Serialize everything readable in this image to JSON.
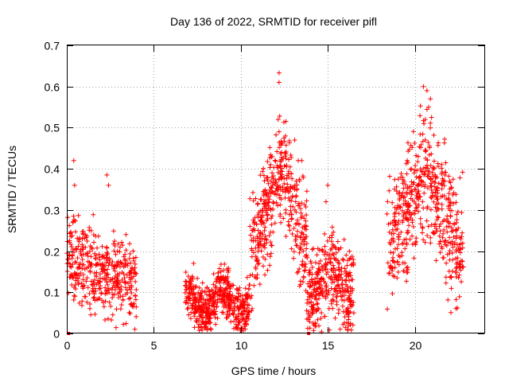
{
  "chart_data": {
    "type": "scatter",
    "title": "Day 136 of 2022, SRMTID for receiver pifl",
    "xlabel": "GPS time / hours",
    "ylabel": "SRMTID / TECUs",
    "xlim": [
      0,
      24
    ],
    "ylim": [
      0,
      0.7
    ],
    "xticks": [
      0,
      5,
      10,
      15,
      20
    ],
    "xtick_labels": [
      "0",
      "5",
      "10",
      "15",
      "20"
    ],
    "yticks": [
      0,
      0.1,
      0.2,
      0.3,
      0.4,
      0.5,
      0.6,
      0.7
    ],
    "ytick_labels": [
      "0",
      "0.1",
      "0.2",
      "0.3",
      "0.4",
      "0.5",
      "0.6",
      "0.7"
    ],
    "grid": true,
    "marker": "+",
    "color": "#ff0000",
    "gap_markers": [
      {
        "x": 0.1,
        "y": 0.0
      },
      {
        "x": 13.9,
        "y": 0.0
      }
    ],
    "series": [
      {
        "name": "SRMTID",
        "clusters": [
          {
            "start": 0.0,
            "end": 4.0,
            "n": 420,
            "base": 0.13,
            "amp": 0.1,
            "peak_x": 0.5,
            "peak_y": 0.42,
            "shape": "decay"
          },
          {
            "start": 6.8,
            "end": 10.5,
            "n": 520,
            "base": 0.08,
            "amp": 0.06,
            "peak_x": 9.0,
            "peak_y": 0.18,
            "shape": "flat"
          },
          {
            "start": 10.5,
            "end": 13.8,
            "n": 420,
            "base": 0.2,
            "amp": 0.12,
            "peak_x": 12.3,
            "peak_y": 0.63,
            "shape": "peak"
          },
          {
            "start": 13.8,
            "end": 16.5,
            "n": 360,
            "base": 0.12,
            "amp": 0.1,
            "peak_x": 15.0,
            "peak_y": 0.36,
            "shape": "flat"
          },
          {
            "start": 18.4,
            "end": 22.8,
            "n": 520,
            "base": 0.2,
            "amp": 0.15,
            "peak_x": 20.6,
            "peak_y": 0.6,
            "shape": "peak"
          }
        ],
        "highlights": [
          [
            0.4,
            0.42
          ],
          [
            0.45,
            0.36
          ],
          [
            2.3,
            0.385
          ],
          [
            2.4,
            0.36
          ],
          [
            12.2,
            0.633
          ],
          [
            12.2,
            0.61
          ],
          [
            12.15,
            0.52
          ],
          [
            12.2,
            0.49
          ],
          [
            12.35,
            0.44
          ],
          [
            13.1,
            0.47
          ],
          [
            13.3,
            0.42
          ],
          [
            13.5,
            0.42
          ],
          [
            12.3,
            0.395
          ],
          [
            20.5,
            0.6
          ],
          [
            20.7,
            0.59
          ],
          [
            20.9,
            0.57
          ],
          [
            20.8,
            0.55
          ],
          [
            20.6,
            0.52
          ],
          [
            15.0,
            0.36
          ],
          [
            14.9,
            0.32
          ],
          [
            19.8,
            0.4
          ],
          [
            20.2,
            0.43
          ],
          [
            22.0,
            0.37
          ]
        ]
      }
    ]
  }
}
